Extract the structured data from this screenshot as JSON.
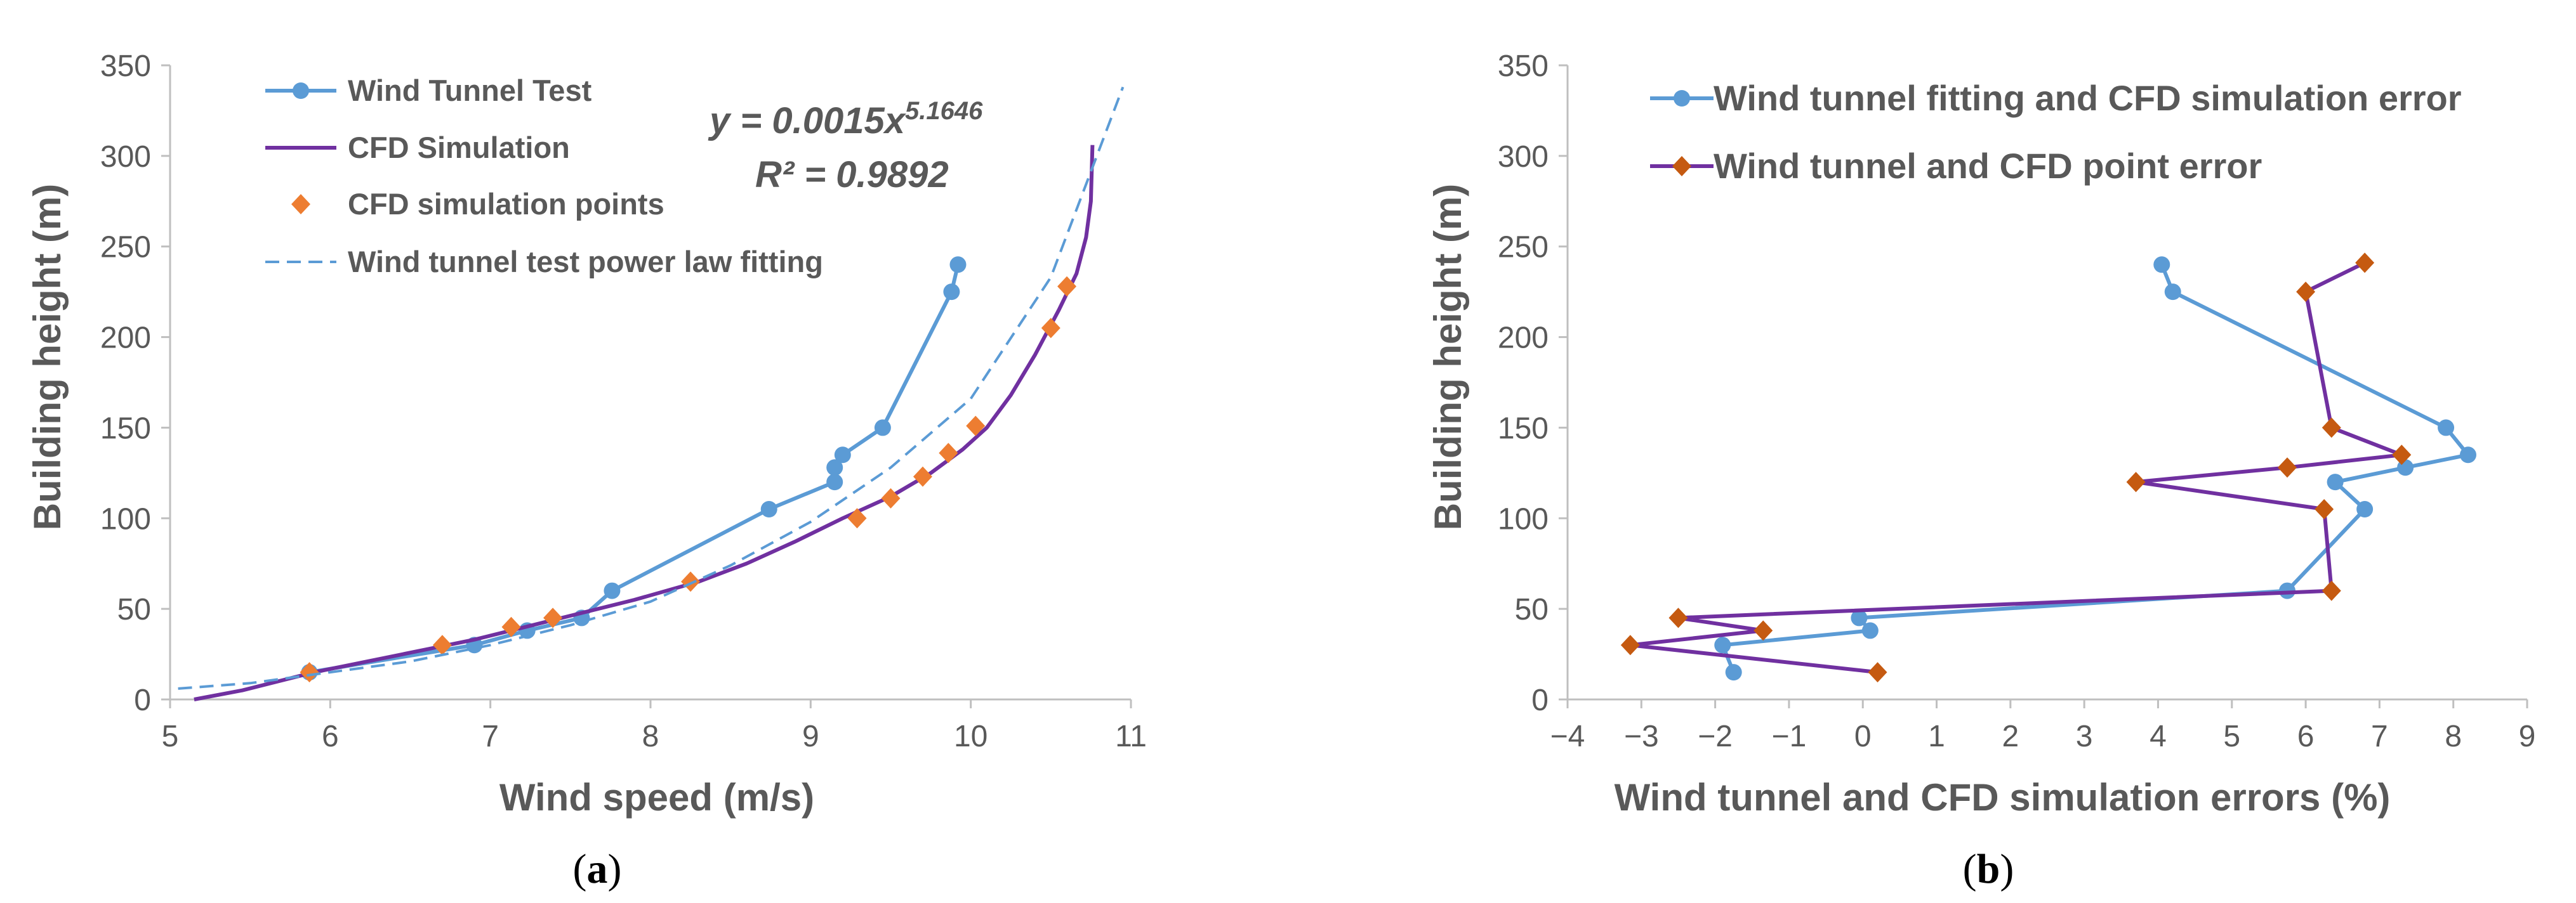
{
  "colors": {
    "blue": "#5B9BD5",
    "purple": "#7030A0",
    "orange": "#ED7D31",
    "brown": "#C55A11",
    "axis": "#BFBFBF",
    "text": "#595959"
  },
  "chart_data": [
    {
      "type": "line",
      "caption": {
        "open": "(",
        "letter": "a",
        "close": ")"
      },
      "xlabel": "Wind speed (m/s)",
      "ylabel": "Building height (m)",
      "xlim": [
        5,
        11
      ],
      "ylim": [
        0,
        350
      ],
      "xticks": [
        5,
        6,
        7,
        8,
        9,
        10,
        11
      ],
      "yticks": [
        0,
        50,
        100,
        150,
        200,
        250,
        300,
        350
      ],
      "xtick_labels": [
        "5",
        "6",
        "7",
        "8",
        "9",
        "10",
        "11"
      ],
      "ytick_labels": [
        "0",
        "50",
        "100",
        "150",
        "200",
        "250",
        "300",
        "350"
      ],
      "equation": {
        "lhs": "y = 0.0015x",
        "exponent": "5.1646",
        "r2": "R² = 0.9892"
      },
      "series": [
        {
          "name": "Wind Tunnel Test",
          "style": "line-circle",
          "color": "#5B9BD5",
          "points": [
            [
              5.87,
              15
            ],
            [
              6.9,
              30
            ],
            [
              7.23,
              38
            ],
            [
              7.57,
              45
            ],
            [
              7.76,
              60
            ],
            [
              8.74,
              105
            ],
            [
              9.15,
              120
            ],
            [
              9.15,
              128
            ],
            [
              9.2,
              135
            ],
            [
              9.45,
              150
            ],
            [
              9.88,
              225
            ],
            [
              9.92,
              240
            ]
          ]
        },
        {
          "name": "CFD Simulation",
          "style": "line",
          "color": "#7030A0",
          "points": [
            [
              5.15,
              0
            ],
            [
              5.45,
              5
            ],
            [
              5.9,
              15
            ],
            [
              6.4,
              24
            ],
            [
              6.9,
              33
            ],
            [
              7.4,
              44
            ],
            [
              7.9,
              55
            ],
            [
              8.3,
              65
            ],
            [
              8.6,
              75
            ],
            [
              8.9,
              87
            ],
            [
              9.2,
              100
            ],
            [
              9.5,
              112
            ],
            [
              9.75,
              125
            ],
            [
              9.95,
              138
            ],
            [
              10.1,
              150
            ],
            [
              10.25,
              168
            ],
            [
              10.4,
              190
            ],
            [
              10.55,
              215
            ],
            [
              10.66,
              235
            ],
            [
              10.72,
              255
            ],
            [
              10.75,
              275
            ],
            [
              10.76,
              306
            ]
          ]
        },
        {
          "name": "CFD simulation points",
          "style": "diamond",
          "color": "#ED7D31",
          "points": [
            [
              5.87,
              15
            ],
            [
              6.7,
              30
            ],
            [
              7.13,
              40
            ],
            [
              7.39,
              45
            ],
            [
              8.25,
              65
            ],
            [
              9.29,
              100
            ],
            [
              9.5,
              111
            ],
            [
              9.7,
              123
            ],
            [
              9.86,
              136
            ],
            [
              10.03,
              151
            ],
            [
              10.5,
              205
            ],
            [
              10.6,
              228
            ]
          ]
        },
        {
          "name": "Wind tunnel test power law fitting",
          "style": "dashed",
          "color": "#5B9BD5",
          "points": [
            [
              5.05,
              6
            ],
            [
              5.5,
              9
            ],
            [
              6.0,
              15
            ],
            [
              6.5,
              21
            ],
            [
              7.0,
              30
            ],
            [
              7.5,
              41
            ],
            [
              8.0,
              54
            ],
            [
              8.5,
              74
            ],
            [
              9.0,
              98
            ],
            [
              9.5,
              128
            ],
            [
              10.0,
              166
            ],
            [
              10.5,
              233
            ],
            [
              10.95,
              338
            ]
          ]
        }
      ]
    },
    {
      "type": "line",
      "caption": {
        "open": "(",
        "letter": "b",
        "close": ")"
      },
      "xlabel": "Wind tunnel and CFD simulation errors (%)",
      "ylabel": "Building height (m)",
      "xlim": [
        -4,
        9
      ],
      "ylim": [
        0,
        350
      ],
      "xticks": [
        -4,
        -3,
        -2,
        -1,
        0,
        1,
        2,
        3,
        4,
        5,
        6,
        7,
        8,
        9
      ],
      "yticks": [
        0,
        50,
        100,
        150,
        200,
        250,
        300,
        350
      ],
      "xtick_labels": [
        "−4",
        "−3",
        "−2",
        "−1",
        "0",
        "1",
        "2",
        "3",
        "4",
        "5",
        "6",
        "7",
        "8",
        "9"
      ],
      "ytick_labels": [
        "0",
        "50",
        "100",
        "150",
        "200",
        "250",
        "300",
        "350"
      ],
      "series": [
        {
          "name": "Wind tunnel fitting and CFD simulation error",
          "style": "line-circle",
          "color": "#5B9BD5",
          "points": [
            [
              -1.75,
              15
            ],
            [
              -1.9,
              30
            ],
            [
              0.1,
              38
            ],
            [
              -0.05,
              45
            ],
            [
              5.75,
              60
            ],
            [
              6.8,
              105
            ],
            [
              6.4,
              120
            ],
            [
              7.35,
              128
            ],
            [
              8.2,
              135
            ],
            [
              7.9,
              150
            ],
            [
              4.2,
              225
            ],
            [
              4.05,
              240
            ]
          ]
        },
        {
          "name": "Wind tunnel and CFD point error",
          "style": "line-diamond",
          "color": "#7030A0",
          "marker_color": "#C55A11",
          "points": [
            [
              0.2,
              15
            ],
            [
              -3.15,
              30
            ],
            [
              -1.35,
              38
            ],
            [
              -2.5,
              45
            ],
            [
              6.35,
              60
            ],
            [
              6.25,
              105
            ],
            [
              3.7,
              120
            ],
            [
              5.75,
              128
            ],
            [
              7.3,
              135
            ],
            [
              6.35,
              150
            ],
            [
              6.0,
              225
            ],
            [
              6.8,
              241
            ]
          ]
        }
      ]
    }
  ]
}
